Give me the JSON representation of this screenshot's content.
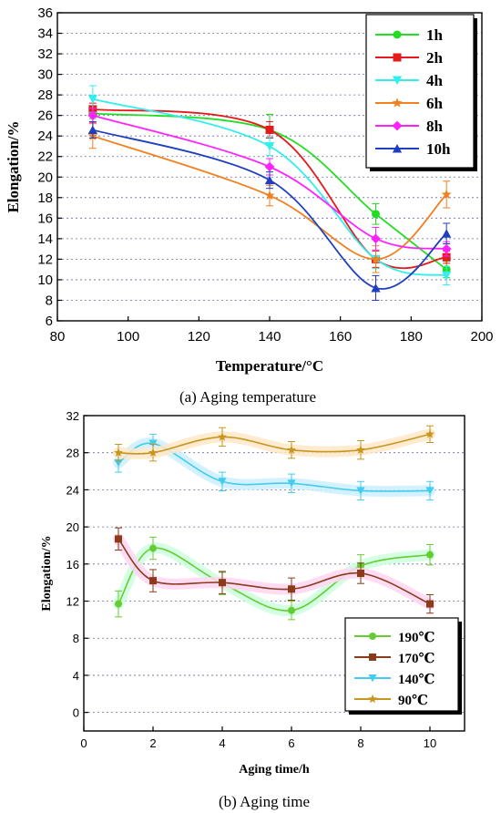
{
  "chart_data": [
    {
      "id": "a",
      "type": "line",
      "caption_label": "(a)",
      "caption_text": "Aging temperature",
      "xlabel": "Temperature/°C",
      "ylabel": "Elongation/%",
      "xlim": [
        80,
        200
      ],
      "ylim": [
        6,
        36
      ],
      "xticks": [
        80,
        100,
        120,
        140,
        160,
        180,
        200
      ],
      "yticks": [
        6,
        8,
        10,
        12,
        14,
        16,
        18,
        20,
        22,
        24,
        26,
        28,
        30,
        32,
        34,
        36
      ],
      "grid": true,
      "legend_position": "top-right",
      "x": [
        90,
        140,
        170,
        190
      ],
      "series": [
        {
          "name": "1h",
          "color": "#22dd22",
          "marker": "circle",
          "values": [
            26.2,
            24.6,
            16.4,
            11.0
          ],
          "errors": [
            0.5,
            1.5,
            1.0,
            0.8
          ]
        },
        {
          "name": "2h",
          "color": "#e41a1c",
          "marker": "square",
          "values": [
            26.6,
            24.6,
            12.0,
            12.2
          ],
          "errors": [
            0.6,
            0.8,
            0.8,
            0.6
          ]
        },
        {
          "name": "4h",
          "color": "#33eeee",
          "marker": "triangle-down",
          "values": [
            27.6,
            23.0,
            12.0,
            10.4
          ],
          "errors": [
            1.3,
            0.9,
            0.9,
            0.9
          ]
        },
        {
          "name": "6h",
          "color": "#f08020",
          "marker": "star",
          "values": [
            24.0,
            18.2,
            12.0,
            18.3
          ],
          "errors": [
            1.2,
            1.0,
            1.3,
            1.3
          ]
        },
        {
          "name": "8h",
          "color": "#ff22ff",
          "marker": "diamond",
          "values": [
            26.0,
            21.0,
            14.0,
            13.0
          ],
          "errors": [
            0.7,
            0.8,
            1.1,
            0.7
          ]
        },
        {
          "name": "10h",
          "color": "#1f3fbf",
          "marker": "triangle-up",
          "values": [
            24.6,
            19.7,
            9.2,
            14.5
          ],
          "errors": [
            0.8,
            0.8,
            1.2,
            1.0
          ]
        }
      ]
    },
    {
      "id": "b",
      "type": "line",
      "caption_label": "(b)",
      "caption_text": "Aging time",
      "xlabel": "Aging time/h",
      "ylabel": "Elongation/%",
      "xlim": [
        0,
        11
      ],
      "ylim": [
        -2,
        32
      ],
      "xticks": [
        0,
        2,
        4,
        6,
        8,
        10
      ],
      "yticks": [
        0,
        4,
        8,
        12,
        16,
        20,
        24,
        28,
        32
      ],
      "grid": true,
      "legend_position": "bottom-right",
      "x": [
        1,
        2,
        4,
        6,
        8,
        10
      ],
      "series": [
        {
          "name": "190℃",
          "color": "#66cc33",
          "halo": "#ccffdd",
          "marker": "circle",
          "values": [
            11.7,
            17.7,
            13.9,
            11.0,
            15.8,
            17.0
          ],
          "errors": [
            1.4,
            1.2,
            1.2,
            1.0,
            1.2,
            1.1
          ]
        },
        {
          "name": "170℃",
          "color": "#8b3a1a",
          "halo": "#ffd6f2",
          "marker": "square",
          "values": [
            18.7,
            14.2,
            14.0,
            13.3,
            15.0,
            11.7
          ],
          "errors": [
            1.2,
            1.2,
            1.2,
            1.2,
            1.1,
            1.0
          ]
        },
        {
          "name": "140℃",
          "color": "#44ccee",
          "halo": "#cceeff",
          "marker": "triangle-down",
          "values": [
            26.9,
            29.0,
            24.9,
            24.7,
            23.9,
            23.9
          ],
          "errors": [
            1.0,
            1.0,
            1.0,
            1.0,
            1.0,
            1.0
          ]
        },
        {
          "name": "90℃",
          "color": "#c8961e",
          "halo": "#ffe8c8",
          "marker": "star",
          "values": [
            28.0,
            28.0,
            29.7,
            28.3,
            28.3,
            30.0
          ],
          "errors": [
            0.9,
            0.9,
            1.0,
            0.9,
            1.0,
            0.9
          ]
        }
      ]
    }
  ]
}
